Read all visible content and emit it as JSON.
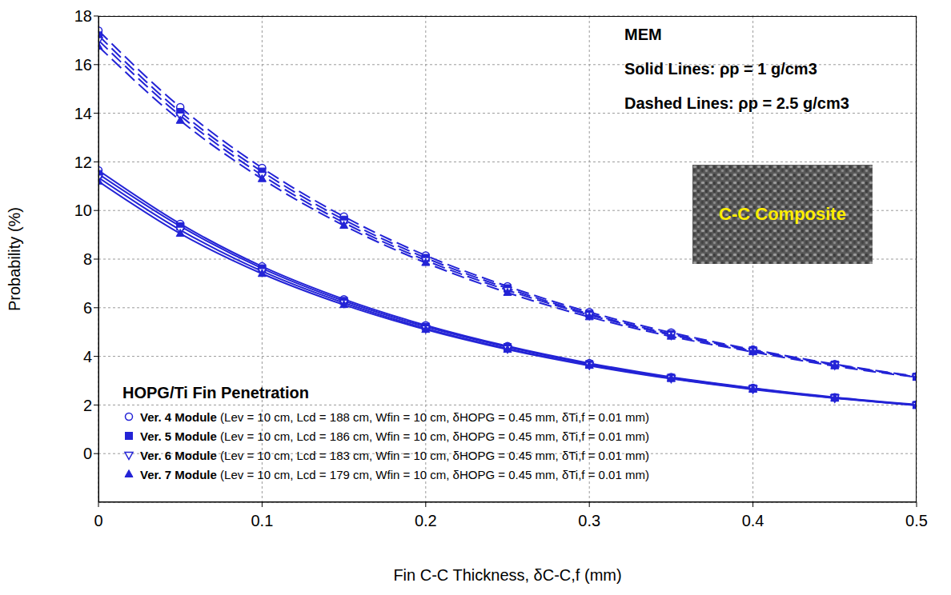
{
  "chart_data": {
    "type": "line",
    "x_label": "Fin C-C Thickness, δC-C,f (mm)",
    "y_label": "Probability (%)",
    "x": [
      0,
      0.05,
      0.1,
      0.15,
      0.2,
      0.25,
      0.3,
      0.35,
      0.4,
      0.45,
      0.5
    ],
    "xlim": [
      0,
      0.5
    ],
    "xticks": [
      0,
      0.1,
      0.2,
      0.3,
      0.4,
      0.5
    ],
    "ylim": [
      -2,
      18
    ],
    "yticks": [
      0,
      2,
      4,
      6,
      8,
      10,
      12,
      14,
      16,
      18
    ],
    "grid": true,
    "legend": "lower left",
    "legend_title": "HOPG/Ti Fin Penetration",
    "legend_details": {
      "Ver. 4 Module": "(Lev = 10 cm, Lcd = 188 cm, Wfin = 10 cm, δHOPG = 0.45 mm, δTi,f = 0.01 mm)",
      "Ver. 5 Module": "(Lev = 10 cm, Lcd = 186 cm, Wfin = 10 cm, δHOPG = 0.45 mm, δTi,f = 0.01 mm)",
      "Ver. 6 Module": "(Lev = 10 cm, Lcd = 183 cm, Wfin = 10 cm, δHOPG = 0.45 mm, δTi,f = 0.01 mm)",
      "Ver. 7 Module": "(Lev = 10 cm, Lcd = 179 cm, Wfin = 10 cm, δHOPG = 0.45 mm, δTi,f = 0.01 mm)"
    },
    "annotations": [
      "MEM",
      "Solid Lines: ρp = 1 g/cm3",
      "Dashed Lines: ρp = 2.5 g/cm3"
    ],
    "inset_label": "C-C Composite",
    "series": [
      {
        "name": "Ver. 4 Module",
        "color": "#2323d6",
        "line_style": "solid",
        "marker": "circle_open",
        "values": [
          11.65,
          9.45,
          7.7,
          6.35,
          5.28,
          4.42,
          3.72,
          3.15,
          2.7,
          2.32,
          2.02
        ]
      },
      {
        "name": "Ver. 5 Module",
        "color": "#2323d6",
        "line_style": "solid",
        "marker": "square",
        "values": [
          11.5,
          9.35,
          7.62,
          6.28,
          5.22,
          4.38,
          3.68,
          3.12,
          2.68,
          2.3,
          2.0
        ]
      },
      {
        "name": "Ver. 6 Module",
        "color": "#2323d6",
        "line_style": "solid",
        "marker": "triangle_down_open",
        "values": [
          11.35,
          9.2,
          7.5,
          6.2,
          5.15,
          4.32,
          3.64,
          3.1,
          2.66,
          2.29,
          1.99
        ]
      },
      {
        "name": "Ver. 7 Module",
        "color": "#2323d6",
        "line_style": "solid",
        "marker": "triangle",
        "values": [
          11.2,
          9.05,
          7.4,
          6.12,
          5.1,
          4.28,
          3.62,
          3.08,
          2.64,
          2.28,
          1.98
        ]
      },
      {
        "name": "Ver. 4 Module",
        "color": "#2323d6",
        "line_style": "dashed",
        "marker": "circle_open",
        "values": [
          17.4,
          14.25,
          11.75,
          9.75,
          8.15,
          6.88,
          5.82,
          4.98,
          4.28,
          3.68,
          3.18
        ]
      },
      {
        "name": "Ver. 5 Module",
        "color": "#2323d6",
        "line_style": "dashed",
        "marker": "square",
        "values": [
          17.2,
          14.05,
          11.6,
          9.62,
          8.05,
          6.8,
          5.75,
          4.92,
          4.25,
          3.66,
          3.16
        ]
      },
      {
        "name": "Ver. 6 Module",
        "color": "#2323d6",
        "line_style": "dashed",
        "marker": "triangle_down_open",
        "values": [
          17.0,
          13.9,
          11.45,
          9.5,
          7.95,
          6.72,
          5.7,
          4.88,
          4.22,
          3.64,
          3.15
        ]
      },
      {
        "name": "Ver. 7 Module",
        "color": "#2323d6",
        "line_style": "dashed",
        "marker": "triangle",
        "values": [
          16.75,
          13.7,
          11.3,
          9.38,
          7.85,
          6.62,
          5.62,
          4.82,
          4.18,
          3.6,
          3.14
        ]
      }
    ]
  }
}
